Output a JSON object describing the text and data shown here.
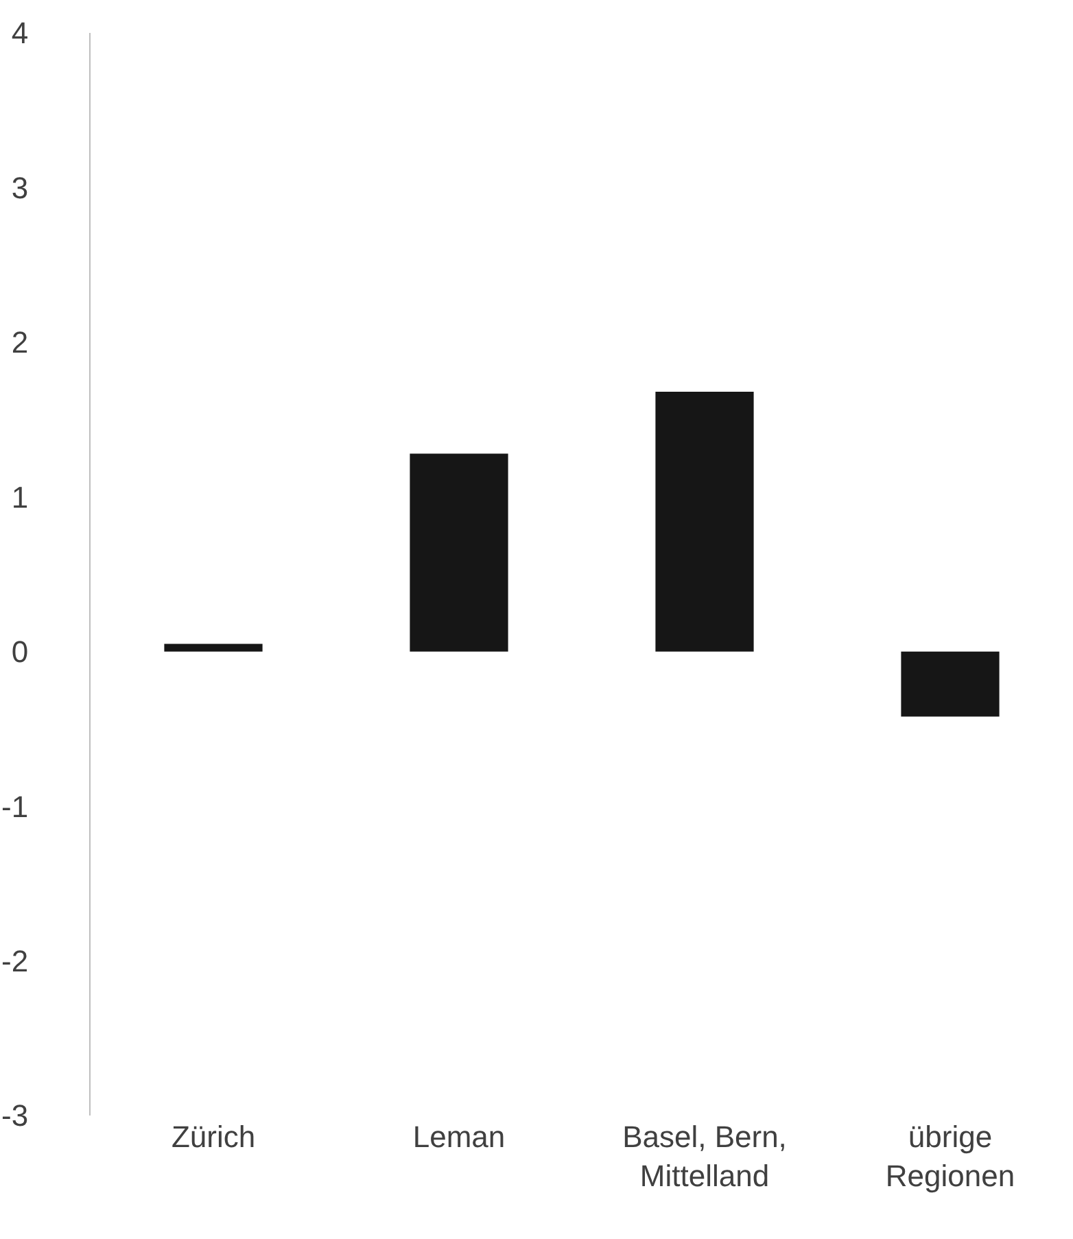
{
  "chart_data": {
    "type": "bar",
    "categories": [
      "Zürich",
      "Leman",
      "Basel, Bern,\nMittelland",
      "übrige\nRegionen"
    ],
    "values": [
      0.05,
      1.28,
      1.68,
      -0.42
    ],
    "color": "#161616",
    "ylim": [
      -3,
      4
    ],
    "yticks": [
      -3,
      -2,
      -1,
      0,
      1,
      2,
      3,
      4
    ],
    "grid": false
  }
}
